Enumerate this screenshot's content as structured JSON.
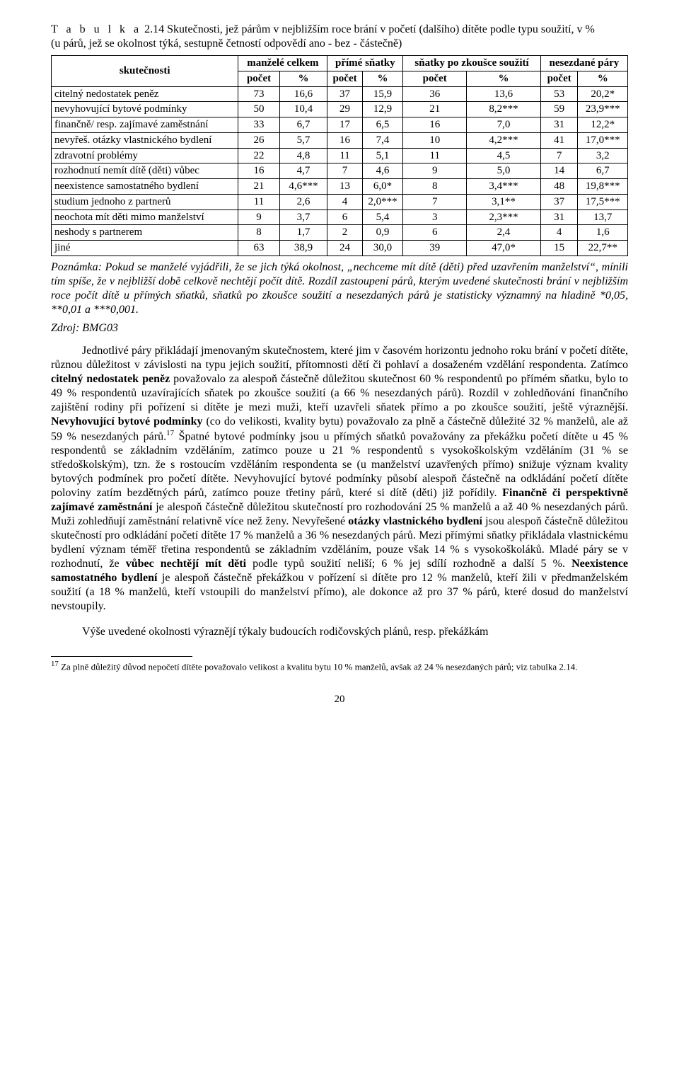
{
  "caption": {
    "prefix_spaced": "T a b u l k a",
    "number_and_title": " 2.14 Skutečnosti, jež párům v nejbližším roce brání v početí (dalšího) dítěte podle  typu soužití, v %",
    "subtitle": "(u párů, jež se okolnost týká, sestupně četností odpovědí ano - bez - částečně)"
  },
  "table": {
    "headers": {
      "row_label": "skutečnosti",
      "groups": [
        "manželé celkem",
        "přímé sňatky",
        "sňatky po zkoušce soužití",
        "nesezdané páry"
      ],
      "sub": [
        "počet",
        "%"
      ]
    },
    "rows": [
      {
        "l": "citelný nedostatek peněz",
        "c": [
          [
            "73",
            "16,6"
          ],
          [
            "37",
            "15,9"
          ],
          [
            "36",
            "13,6"
          ],
          [
            "53",
            "20,2*"
          ]
        ]
      },
      {
        "l": "nevyhovující bytové podmínky",
        "c": [
          [
            "50",
            "10,4"
          ],
          [
            "29",
            "12,9"
          ],
          [
            "21",
            "8,2***"
          ],
          [
            "59",
            "23,9***"
          ]
        ]
      },
      {
        "l": "finančně/ resp. zajímavé zaměstnání",
        "c": [
          [
            "33",
            "6,7"
          ],
          [
            "17",
            "6,5"
          ],
          [
            "16",
            "7,0"
          ],
          [
            "31",
            "12,2*"
          ]
        ]
      },
      {
        "l": "nevyřeš. otázky vlastnického bydlení",
        "c": [
          [
            "26",
            "5,7"
          ],
          [
            "16",
            "7,4"
          ],
          [
            "10",
            "4,2***"
          ],
          [
            "41",
            "17,0***"
          ]
        ]
      },
      {
        "l": "zdravotní problémy",
        "c": [
          [
            "22",
            "4,8"
          ],
          [
            "11",
            "5,1"
          ],
          [
            "11",
            "4,5"
          ],
          [
            "7",
            "3,2"
          ]
        ]
      },
      {
        "l": "rozhodnutí nemít dítě (děti) vůbec",
        "c": [
          [
            "16",
            "4,7"
          ],
          [
            "7",
            "4,6"
          ],
          [
            "9",
            "5,0"
          ],
          [
            "14",
            "6,7"
          ]
        ]
      },
      {
        "l": "neexistence samostatného bydlení",
        "c": [
          [
            "21",
            "4,6***"
          ],
          [
            "13",
            "6,0*"
          ],
          [
            "8",
            "3,4***"
          ],
          [
            "48",
            "19,8***"
          ]
        ]
      },
      {
        "l": "studium jednoho z partnerů",
        "c": [
          [
            "11",
            "2,6"
          ],
          [
            "4",
            "2,0***"
          ],
          [
            "7",
            "3,1**"
          ],
          [
            "37",
            "17,5***"
          ]
        ]
      },
      {
        "l": "neochota mít děti mimo manželství",
        "c": [
          [
            "9",
            "3,7"
          ],
          [
            "6",
            "5,4"
          ],
          [
            "3",
            "2,3***"
          ],
          [
            "31",
            "13,7"
          ]
        ]
      },
      {
        "l": "neshody s partnerem",
        "c": [
          [
            "8",
            "1,7"
          ],
          [
            "2",
            "0,9"
          ],
          [
            "6",
            "2,4"
          ],
          [
            "4",
            "1,6"
          ]
        ]
      },
      {
        "l": "jiné",
        "c": [
          [
            "63",
            "38,9"
          ],
          [
            "24",
            "30,0"
          ],
          [
            "39",
            "47,0*"
          ],
          [
            "15",
            "22,7**"
          ]
        ]
      }
    ]
  },
  "note": "Poznámka: Pokud se manželé vyjádřili, že se jich týká okolnost, „nechceme mít dítě (děti) před uzavřením manželství“, mínili tím spíše, že v nejbližší době celkově nechtějí počít dítě. Rozdíl zastoupení párů, kterým uvedené skutečnosti brání v nejbližším roce  počít dítě u přímých sňatků, sňatků po zkoušce soužití a nesezdaných párů je statisticky významný na hladině *0,05, **0,01 a ***0,001.",
  "source": "Zdroj: BMG03",
  "body": {
    "p1_parts": [
      {
        "t": "Jednotlivé páry přikládají jmenovaným skutečnostem, které jim v časovém horizontu jednoho roku brání v početí dítěte, různou důležitost v závislosti na typu jejich soužití, přítomnosti dětí či pohlaví a dosaženém vzdělání respondenta. Zatímco ",
        "b": false
      },
      {
        "t": "citelný nedostatek peněz",
        "b": true
      },
      {
        "t": " považovalo za alespoň částečně důležitou skutečnost 60 % respondentů po přímém sňatku, bylo to 49 % respondentů uzavírajících sňatek po zkoušce soužití (a 66 % nesezdaných párů). Rozdíl v zohledňování finančního zajištění rodiny při pořízení si dítěte je mezi muži, kteří uzavřeli sňatek přímo a po zkoušce soužití, ještě výraznější. ",
        "b": false
      },
      {
        "t": "Nevyhovující bytové podmínky",
        "b": true
      },
      {
        "t": " (co do velikosti, kvality bytu) považovalo za plně a částečně důležité 32 % manželů, ale až 59 % nesezdaných párů.",
        "b": false
      },
      {
        "t": "17",
        "sup": true
      },
      {
        "t": " Špatné bytové podmínky jsou u přímých sňatků považovány za překážku početí dítěte u 45 % respondentů se základním vzděláním, zatímco pouze u 21 % respondentů s vysokoškolským vzděláním (31 % se středoškolským), tzn. že s rostoucím vzděláním respondenta se (u manželství uzavřených přímo) snižuje význam kvality bytových podmínek pro početí dítěte. Nevyhovující bytové podmínky působí alespoň částečně na odkládání početí dítěte poloviny zatím bezdětných párů, zatímco pouze třetiny párů, které si dítě (děti) již pořídily. ",
        "b": false
      },
      {
        "t": "Finančně či perspektivně zajímavé zaměstnání",
        "b": true
      },
      {
        "t": " je alespoň částečně důležitou skutečností pro rozhodování 25 % manželů a až 40 % nesezdaných párů. Muži zohledňují zaměstnání relativně více než ženy. Nevyřešené ",
        "b": false
      },
      {
        "t": "otázky vlastnického bydlení",
        "b": true
      },
      {
        "t": " jsou alespoň částečně důležitou skutečností pro odkládání početí dítěte 17 % manželů a 36 % nesezdaných párů. Mezi přímými sňatky přikládala vlastnickému bydlení význam téměř třetina respondentů se základním vzděláním, pouze však 14 % s vysokoškoláků. Mladé páry se v rozhodnutí, že ",
        "b": false
      },
      {
        "t": "vůbec nechtějí mít děti",
        "b": true
      },
      {
        "t": " podle typů soužití neliší; 6 % jej sdílí rozhodně a další 5 %. ",
        "b": false
      },
      {
        "t": "Neexistence samostatného bydlení",
        "b": true
      },
      {
        "t": " je alespoň částečně překážkou v pořízení si dítěte pro 12 % manželů, kteří žili v předmanželském soužití (a 18 % manželů, kteří vstoupili do manželství přímo), ale dokonce až pro 37 % párů, které dosud do manželství nevstoupily.",
        "b": false
      }
    ],
    "p2": "Výše uvedené okolnosti výraznějí týkaly budoucích rodičovských plánů, resp. překážkám"
  },
  "footnote": {
    "num": "17",
    "text": " Za plně důležitý důvod nepočetí dítěte považovalo velikost a kvalitu bytu 10 % manželů, avšak až 24 % nesezdaných párů; viz tabulka 2.14."
  },
  "pagenum": "20",
  "colors": {
    "text": "#000000",
    "background": "#ffffff",
    "border": "#000000"
  }
}
